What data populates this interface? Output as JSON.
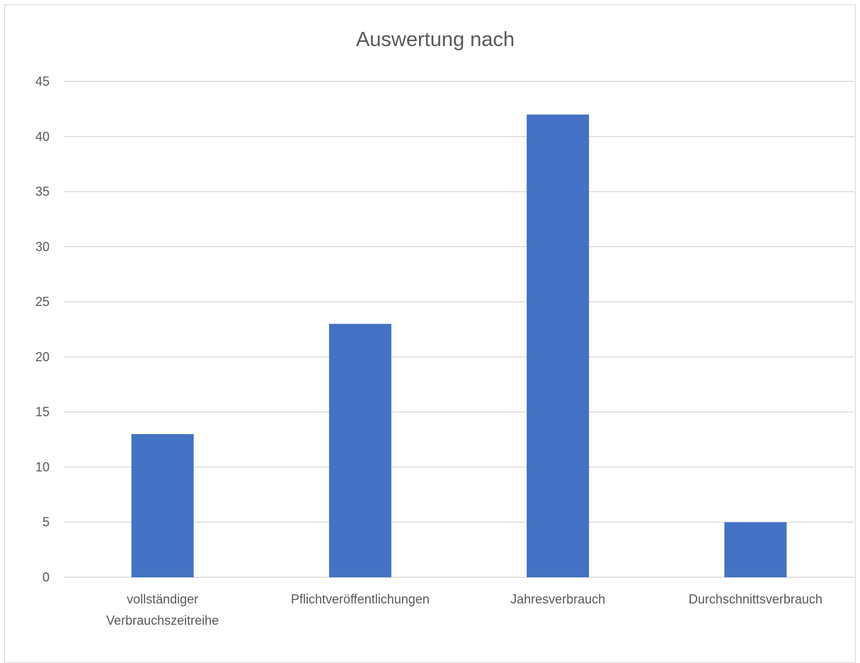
{
  "chart_data": {
    "type": "bar",
    "title": "Auswertung nach",
    "categories": [
      [
        "vollständiger",
        "Verbrauchszeitreihe"
      ],
      [
        "Pflichtveröffentlichungen"
      ],
      [
        "Jahresverbrauch"
      ],
      [
        "Durchschnittsverbrauch"
      ]
    ],
    "values": [
      13,
      23,
      42,
      5
    ],
    "ylim": [
      0,
      45
    ],
    "yticks": [
      0,
      5,
      10,
      15,
      20,
      25,
      30,
      35,
      40,
      45
    ],
    "grid": true,
    "legend": "none",
    "bar_color": "#4472c4",
    "grid_color": "#d9d9d9",
    "text_color": "#595959"
  }
}
